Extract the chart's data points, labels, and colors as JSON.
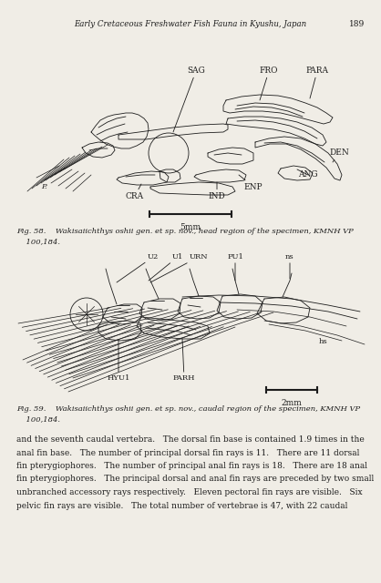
{
  "page_title": "Early Cretaceous Freshwater Fish Fauna in Kyushu, Japan",
  "page_number": "189",
  "background_color": "#f0ede6",
  "fig58_caption_line1": "Fig. 58.    Wakisaiichthys oshii gen. et sp. nov., head region of the specimen, KMNH VP",
  "fig58_caption_line2": "    100,184.",
  "fig59_caption_line1": "Fig. 59.    Wakisaiichthys oshii gen. et sp. nov., caudal region of the specimen, KMNH VP",
  "fig59_caption_line2": "    100,184.",
  "body_lines": [
    "and the seventh caudal vertebra.   The dorsal fin base is contained 1.9 times in the",
    "anal fin base.   The number of principal dorsal fin rays is 11.   There are 11 dorsal",
    "fin pterygiophores.   The number of principal anal fin rays is 18.   There are 18 anal",
    "fin pterygiophores.   The principal dorsal and anal fin rays are preceded by two small",
    "unbranched accessory rays respectively.   Eleven pectoral fin rays are visible.   Six",
    "pelvic fin rays are visible.   The total number of vertebrae is 47, with 22 caudal"
  ],
  "scalebar58_text": "5mm",
  "scalebar59_text": "2mm"
}
